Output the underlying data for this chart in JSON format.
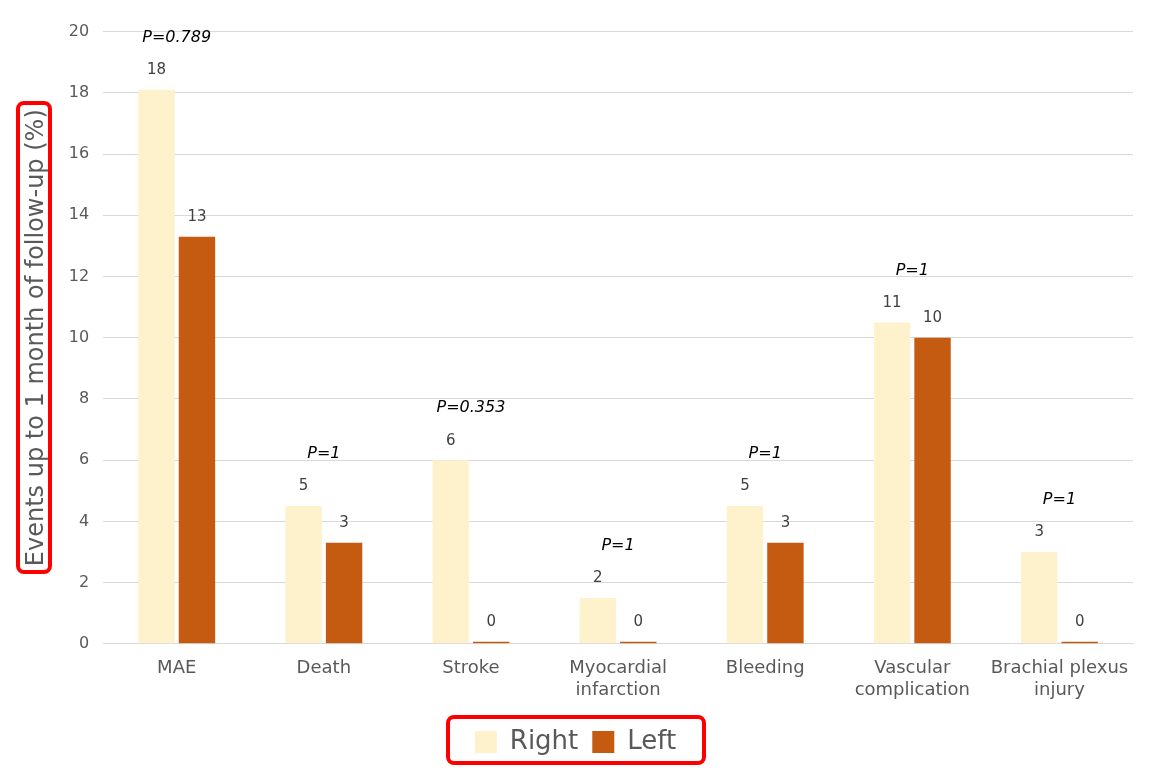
{
  "chart_data": {
    "type": "bar",
    "ylabel": "Events up to 1 month of follow-up (%)",
    "categories": [
      "MAE",
      "Death",
      "Stroke",
      "Myocardial infarction",
      "Bleeding",
      "Vascular complication",
      "Brachial plexus injury"
    ],
    "series": [
      {
        "name": "Right",
        "color": "#fef2cc",
        "values": [
          18.1,
          4.5,
          6.0,
          1.5,
          4.5,
          10.5,
          3.0
        ],
        "value_labels": [
          "18",
          "5",
          "6",
          "2",
          "5",
          "11",
          "3"
        ]
      },
      {
        "name": "Left",
        "color": "#c55a11",
        "values": [
          13.3,
          3.3,
          0,
          0,
          3.3,
          10.0,
          0
        ],
        "value_labels": [
          "13",
          "3",
          "0",
          "0",
          "3",
          "10",
          "0"
        ]
      }
    ],
    "ylim": [
      0,
      20
    ],
    "yticks": [
      0,
      2,
      4,
      6,
      8,
      10,
      12,
      14,
      16,
      18,
      20
    ],
    "grid": "y",
    "legend": "bottom",
    "annotations": [
      "P=0.789",
      "P=1",
      "P=0.353",
      "P=1",
      "P=1",
      "P=1",
      "P=1"
    ]
  }
}
